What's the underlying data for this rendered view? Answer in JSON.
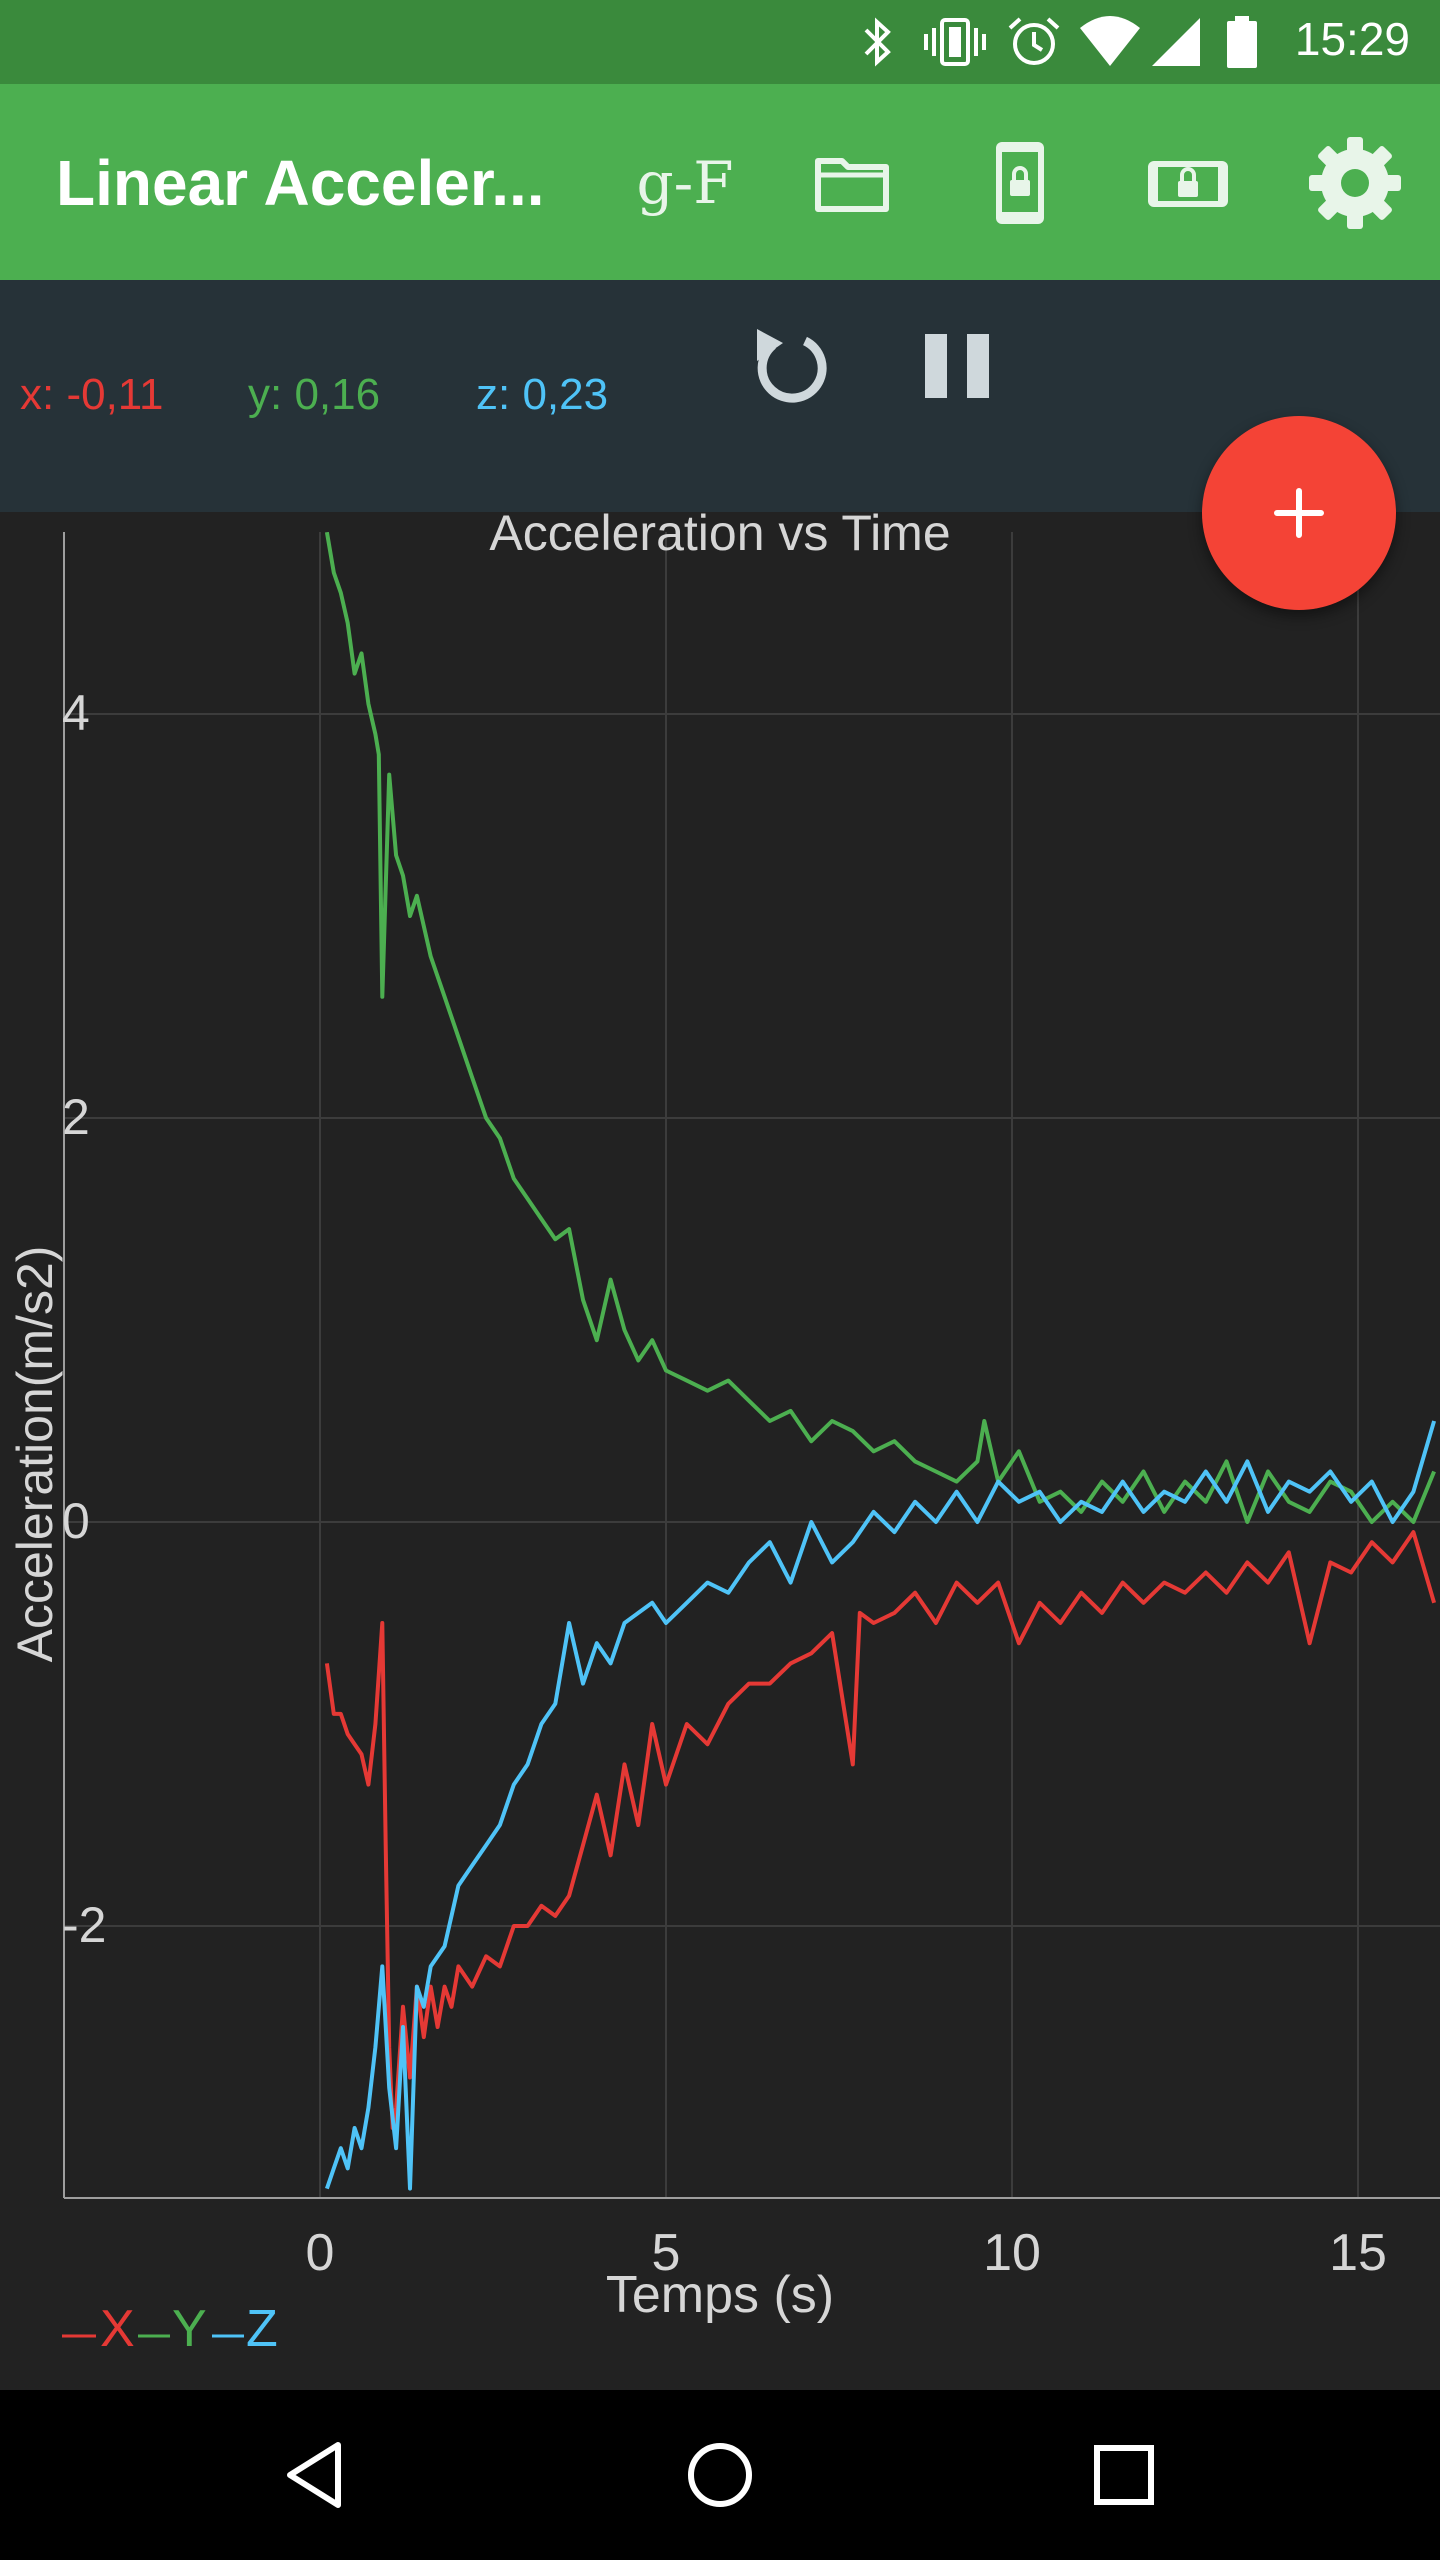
{
  "status_bar": {
    "time": "15:29",
    "icons": [
      "bluetooth-icon",
      "vibrate-icon",
      "alarm-icon",
      "wifi-icon",
      "signal-icon",
      "battery-icon"
    ]
  },
  "app_bar": {
    "title": "Linear Acceler...",
    "gf_label": "g-F",
    "actions": [
      "g-force-toggle",
      "folder-icon",
      "phone-lock-icon",
      "landscape-lock-icon",
      "settings-gear-icon"
    ]
  },
  "readout": {
    "x": "x: -0,11",
    "y": "y: 0,16",
    "z": "z: 0,23"
  },
  "colors": {
    "x": "#e53935",
    "y": "#4caf50",
    "z": "#4fc3f7",
    "primary": "#4caf50",
    "accent": "#f44336"
  },
  "chart_data": {
    "type": "line",
    "title": "Acceleration vs Time",
    "xlabel": "Temps (s)",
    "ylabel": "Acceleration(m/s2)",
    "xlim": [
      -3.7,
      16.2
    ],
    "ylim": [
      -3.35,
      4.9
    ],
    "xticks": [
      0,
      5,
      10,
      15
    ],
    "yticks": [
      -2,
      0,
      2,
      4
    ],
    "grid": true,
    "legend_position": "bottom-left",
    "series": [
      {
        "name": "X",
        "color": "#e53935",
        "x": [
          0.1,
          0.2,
          0.3,
          0.4,
          0.5,
          0.6,
          0.7,
          0.8,
          0.9,
          0.95,
          1.0,
          1.05,
          1.1,
          1.2,
          1.3,
          1.4,
          1.5,
          1.6,
          1.7,
          1.8,
          1.9,
          2.0,
          2.2,
          2.4,
          2.6,
          2.8,
          3.0,
          3.2,
          3.4,
          3.6,
          3.8,
          4.0,
          4.2,
          4.4,
          4.6,
          4.8,
          5.0,
          5.3,
          5.6,
          5.9,
          6.2,
          6.5,
          6.8,
          7.1,
          7.4,
          7.7,
          7.8,
          8.0,
          8.3,
          8.6,
          8.9,
          9.2,
          9.5,
          9.8,
          10.1,
          10.4,
          10.7,
          11.0,
          11.3,
          11.6,
          11.9,
          12.2,
          12.5,
          12.8,
          13.1,
          13.4,
          13.7,
          14.0,
          14.3,
          14.6,
          14.9,
          15.2,
          15.5,
          15.8,
          16.1
        ],
        "y": [
          -0.7,
          -0.95,
          -0.95,
          -1.05,
          -1.1,
          -1.15,
          -1.3,
          -1.0,
          -0.5,
          -1.6,
          -2.6,
          -3.0,
          -2.9,
          -2.4,
          -2.75,
          -2.3,
          -2.55,
          -2.3,
          -2.5,
          -2.3,
          -2.4,
          -2.2,
          -2.3,
          -2.15,
          -2.2,
          -2.0,
          -2.0,
          -1.9,
          -1.95,
          -1.85,
          -1.6,
          -1.35,
          -1.65,
          -1.2,
          -1.5,
          -1.0,
          -1.3,
          -1.0,
          -1.1,
          -0.9,
          -0.8,
          -0.8,
          -0.7,
          -0.65,
          -0.55,
          -1.2,
          -0.45,
          -0.5,
          -0.45,
          -0.35,
          -0.5,
          -0.3,
          -0.4,
          -0.3,
          -0.6,
          -0.4,
          -0.5,
          -0.35,
          -0.45,
          -0.3,
          -0.4,
          -0.3,
          -0.35,
          -0.25,
          -0.35,
          -0.2,
          -0.3,
          -0.15,
          -0.6,
          -0.2,
          -0.25,
          -0.1,
          -0.2,
          -0.05,
          -0.4
        ]
      },
      {
        "name": "Y",
        "color": "#4caf50",
        "x": [
          0.1,
          0.2,
          0.3,
          0.4,
          0.5,
          0.6,
          0.7,
          0.8,
          0.85,
          0.9,
          1.0,
          1.1,
          1.2,
          1.3,
          1.4,
          1.6,
          1.8,
          2.0,
          2.2,
          2.4,
          2.6,
          2.8,
          3.0,
          3.2,
          3.4,
          3.6,
          3.8,
          4.0,
          4.2,
          4.4,
          4.6,
          4.8,
          5.0,
          5.3,
          5.6,
          5.9,
          6.2,
          6.5,
          6.8,
          7.1,
          7.4,
          7.7,
          8.0,
          8.3,
          8.6,
          8.9,
          9.2,
          9.5,
          9.6,
          9.8,
          10.1,
          10.4,
          10.7,
          11.0,
          11.3,
          11.6,
          11.9,
          12.2,
          12.5,
          12.8,
          13.1,
          13.4,
          13.7,
          14.0,
          14.3,
          14.6,
          14.9,
          15.2,
          15.5,
          15.8,
          16.1
        ],
        "y": [
          4.9,
          4.7,
          4.6,
          4.45,
          4.2,
          4.3,
          4.05,
          3.9,
          3.8,
          2.6,
          3.7,
          3.3,
          3.2,
          3.0,
          3.1,
          2.8,
          2.6,
          2.4,
          2.2,
          2.0,
          1.9,
          1.7,
          1.6,
          1.5,
          1.4,
          1.45,
          1.1,
          0.9,
          1.2,
          0.95,
          0.8,
          0.9,
          0.75,
          0.7,
          0.65,
          0.7,
          0.6,
          0.5,
          0.55,
          0.4,
          0.5,
          0.45,
          0.35,
          0.4,
          0.3,
          0.25,
          0.2,
          0.3,
          0.5,
          0.2,
          0.35,
          0.1,
          0.15,
          0.05,
          0.2,
          0.1,
          0.25,
          0.05,
          0.2,
          0.1,
          0.3,
          0.0,
          0.25,
          0.1,
          0.05,
          0.2,
          0.15,
          0.0,
          0.1,
          0.0,
          0.25
        ]
      },
      {
        "name": "Z",
        "color": "#4fc3f7",
        "x": [
          0.1,
          0.2,
          0.3,
          0.4,
          0.5,
          0.6,
          0.7,
          0.8,
          0.9,
          1.0,
          1.1,
          1.2,
          1.3,
          1.4,
          1.5,
          1.6,
          1.8,
          2.0,
          2.2,
          2.4,
          2.6,
          2.8,
          3.0,
          3.2,
          3.4,
          3.6,
          3.8,
          4.0,
          4.2,
          4.4,
          4.6,
          4.8,
          5.0,
          5.3,
          5.6,
          5.9,
          6.2,
          6.5,
          6.8,
          7.1,
          7.4,
          7.7,
          8.0,
          8.3,
          8.6,
          8.9,
          9.2,
          9.5,
          9.8,
          10.1,
          10.4,
          10.7,
          11.0,
          11.3,
          11.6,
          11.9,
          12.2,
          12.5,
          12.8,
          13.1,
          13.4,
          13.7,
          14.0,
          14.3,
          14.6,
          14.9,
          15.2,
          15.5,
          15.8,
          16.1
        ],
        "y": [
          -3.3,
          -3.2,
          -3.1,
          -3.2,
          -3.0,
          -3.1,
          -2.9,
          -2.6,
          -2.2,
          -2.8,
          -3.1,
          -2.5,
          -3.3,
          -2.3,
          -2.4,
          -2.2,
          -2.1,
          -1.8,
          -1.7,
          -1.6,
          -1.5,
          -1.3,
          -1.2,
          -1.0,
          -0.9,
          -0.5,
          -0.8,
          -0.6,
          -0.7,
          -0.5,
          -0.45,
          -0.4,
          -0.5,
          -0.4,
          -0.3,
          -0.35,
          -0.2,
          -0.1,
          -0.3,
          0.0,
          -0.2,
          -0.1,
          0.05,
          -0.05,
          0.1,
          0.0,
          0.15,
          0.0,
          0.2,
          0.1,
          0.15,
          0.0,
          0.1,
          0.05,
          0.2,
          0.05,
          0.15,
          0.1,
          0.25,
          0.1,
          0.3,
          0.05,
          0.2,
          0.15,
          0.25,
          0.1,
          0.2,
          0.0,
          0.15,
          0.5
        ]
      }
    ]
  },
  "legend": {
    "x": "X",
    "y": "Y",
    "z": "Z"
  }
}
